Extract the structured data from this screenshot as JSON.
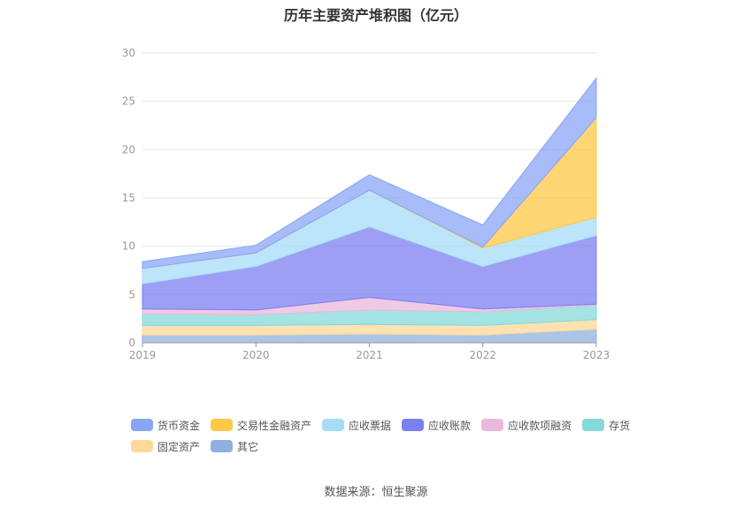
{
  "title": "历年主要资产堆积图（亿元）",
  "source": "数据来源：恒生聚源",
  "chart_data": {
    "type": "area",
    "stacked": true,
    "categories": [
      "2019",
      "2020",
      "2021",
      "2022",
      "2023"
    ],
    "ylim": [
      0,
      30
    ],
    "yticks": [
      "0",
      "5",
      "10",
      "15",
      "20",
      "25",
      "30"
    ],
    "grid": true,
    "legend_position": "bottom",
    "series": [
      {
        "name": "其它",
        "color": "#8fb0e0",
        "values": [
          0.8,
          0.8,
          0.9,
          0.8,
          1.4
        ]
      },
      {
        "name": "固定资产",
        "color": "#ffd89a",
        "values": [
          1.0,
          1.0,
          1.0,
          1.0,
          1.0
        ]
      },
      {
        "name": "存货",
        "color": "#86d9da",
        "values": [
          1.2,
          1.1,
          1.5,
          1.4,
          1.5
        ]
      },
      {
        "name": "应收款项融资",
        "color": "#eab8dc",
        "values": [
          0.5,
          0.5,
          1.3,
          0.3,
          0.1
        ]
      },
      {
        "name": "应收账款",
        "color": "#7b7ff0",
        "values": [
          2.6,
          4.5,
          7.3,
          4.4,
          7.1
        ]
      },
      {
        "name": "应收票据",
        "color": "#a7dcf7",
        "values": [
          1.6,
          1.4,
          3.8,
          1.9,
          1.9
        ]
      },
      {
        "name": "交易性金融资产",
        "color": "#ffc845",
        "values": [
          0,
          0,
          0,
          0.1,
          10.3
        ]
      },
      {
        "name": "货币资金",
        "color": "#89a6f6",
        "values": [
          0.7,
          0.8,
          1.6,
          2.3,
          4.1
        ]
      }
    ],
    "legend_order": [
      "货币资金",
      "交易性金融资产",
      "应收票据",
      "应收账款",
      "应收款项融资",
      "存货",
      "固定资产",
      "其它"
    ]
  }
}
